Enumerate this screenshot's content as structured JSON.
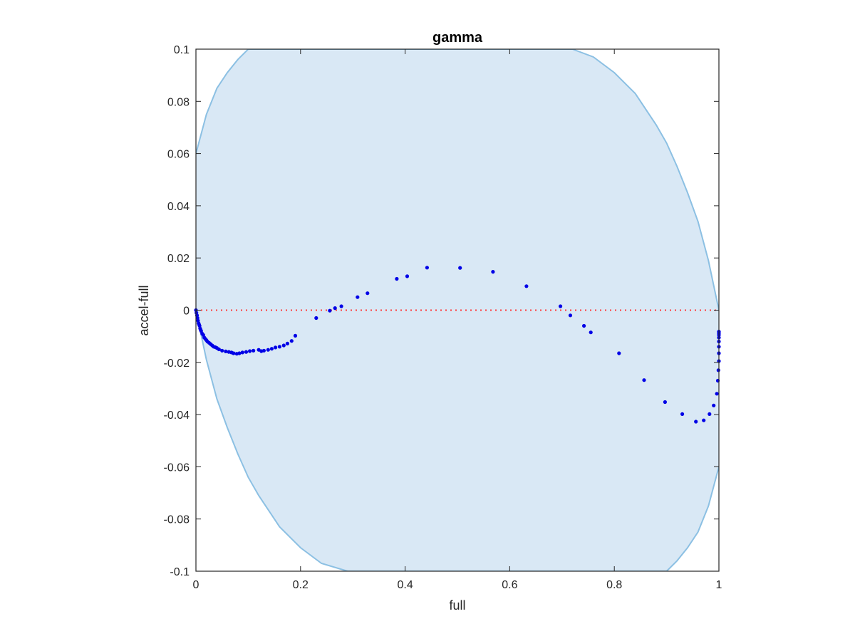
{
  "chart_data": {
    "type": "scatter",
    "title": "gamma",
    "xlabel": "full",
    "ylabel": "accel-full",
    "xlim": [
      0,
      1
    ],
    "ylim": [
      -0.1,
      0.1
    ],
    "xticks": [
      0,
      0.2,
      0.4,
      0.6,
      0.8,
      1
    ],
    "xtick_labels": [
      "0",
      "0.2",
      "0.4",
      "0.6",
      "0.8",
      "1"
    ],
    "yticks": [
      -0.1,
      -0.08,
      -0.06,
      -0.04,
      -0.02,
      0,
      0.02,
      0.04,
      0.06,
      0.08,
      0.1
    ],
    "ytick_labels": [
      "-0.1",
      "-0.08",
      "-0.06",
      "-0.04",
      "-0.02",
      "0",
      "0.02",
      "0.04",
      "0.06",
      "0.08",
      "0.1"
    ],
    "grid": false,
    "band": {
      "fill_color": "#d9e8f5",
      "edge_color": "#8cc0e3",
      "upper": [
        [
          0,
          0.06
        ],
        [
          0.02,
          0.075
        ],
        [
          0.04,
          0.085
        ],
        [
          0.06,
          0.091
        ],
        [
          0.08,
          0.096
        ],
        [
          0.1,
          0.1
        ],
        [
          0.3,
          0.1
        ],
        [
          0.5,
          0.1
        ],
        [
          0.7,
          0.1
        ],
        [
          0.72,
          0.1
        ],
        [
          0.76,
          0.097
        ],
        [
          0.8,
          0.091
        ],
        [
          0.84,
          0.083
        ],
        [
          0.88,
          0.071
        ],
        [
          0.9,
          0.064
        ],
        [
          0.92,
          0.055
        ],
        [
          0.94,
          0.045
        ],
        [
          0.96,
          0.034
        ],
        [
          0.98,
          0.019
        ],
        [
          1,
          0
        ]
      ],
      "lower": [
        [
          0,
          0
        ],
        [
          0.02,
          -0.019
        ],
        [
          0.04,
          -0.034
        ],
        [
          0.06,
          -0.045
        ],
        [
          0.08,
          -0.055
        ],
        [
          0.1,
          -0.064
        ],
        [
          0.12,
          -0.071
        ],
        [
          0.16,
          -0.083
        ],
        [
          0.2,
          -0.091
        ],
        [
          0.24,
          -0.097
        ],
        [
          0.29,
          -0.1
        ],
        [
          0.5,
          -0.1
        ],
        [
          0.7,
          -0.1
        ],
        [
          0.9,
          -0.1
        ],
        [
          0.92,
          -0.096
        ],
        [
          0.94,
          -0.091
        ],
        [
          0.96,
          -0.085
        ],
        [
          0.98,
          -0.075
        ],
        [
          1,
          -0.06
        ]
      ]
    },
    "reference_line": {
      "y": 0,
      "color": "#ff3b3b",
      "style": "dotted"
    },
    "series": [
      {
        "color": "#0000e6",
        "points": [
          [
            0,
            0
          ],
          [
            0.001,
            -0.001
          ],
          [
            0.002,
            -0.002
          ],
          [
            0.003,
            -0.003
          ],
          [
            0.004,
            -0.004
          ],
          [
            0.005,
            -0.005
          ],
          [
            0.006,
            -0.0055
          ],
          [
            0.007,
            -0.006
          ],
          [
            0.008,
            -0.007
          ],
          [
            0.009,
            -0.0075
          ],
          [
            0.01,
            -0.008
          ],
          [
            0.012,
            -0.009
          ],
          [
            0.014,
            -0.0095
          ],
          [
            0.016,
            -0.0105
          ],
          [
            0.018,
            -0.011
          ],
          [
            0.02,
            -0.0115
          ],
          [
            0.022,
            -0.012
          ],
          [
            0.025,
            -0.0125
          ],
          [
            0.028,
            -0.013
          ],
          [
            0.031,
            -0.0135
          ],
          [
            0.034,
            -0.014
          ],
          [
            0.037,
            -0.0142
          ],
          [
            0.04,
            -0.0145
          ],
          [
            0.044,
            -0.015
          ],
          [
            0.05,
            -0.0155
          ],
          [
            0.057,
            -0.0158
          ],
          [
            0.063,
            -0.016
          ],
          [
            0.068,
            -0.0162
          ],
          [
            0.072,
            -0.0165
          ],
          [
            0.078,
            -0.0167
          ],
          [
            0.083,
            -0.0165
          ],
          [
            0.089,
            -0.0162
          ],
          [
            0.096,
            -0.016
          ],
          [
            0.103,
            -0.0157
          ],
          [
            0.11,
            -0.0155
          ],
          [
            0.12,
            -0.0152
          ],
          [
            0.125,
            -0.0157
          ],
          [
            0.13,
            -0.0155
          ],
          [
            0.138,
            -0.0152
          ],
          [
            0.145,
            -0.0148
          ],
          [
            0.152,
            -0.0143
          ],
          [
            0.16,
            -0.014
          ],
          [
            0.168,
            -0.0135
          ],
          [
            0.175,
            -0.0128
          ],
          [
            0.183,
            -0.0118
          ],
          [
            0.19,
            -0.0098
          ],
          [
            0.23,
            -0.003
          ],
          [
            0.256,
            -0.0002
          ],
          [
            0.266,
            0.0008
          ],
          [
            0.278,
            0.0015
          ],
          [
            0.309,
            0.005
          ],
          [
            0.328,
            0.0065
          ],
          [
            0.384,
            0.012
          ],
          [
            0.404,
            0.013
          ],
          [
            0.442,
            0.0163
          ],
          [
            0.505,
            0.0162
          ],
          [
            0.568,
            0.0147
          ],
          [
            0.632,
            0.0092
          ],
          [
            0.697,
            0.0015
          ],
          [
            0.716,
            -0.002
          ],
          [
            0.742,
            -0.006
          ],
          [
            0.755,
            -0.0085
          ],
          [
            0.809,
            -0.0165
          ],
          [
            0.857,
            -0.0268
          ],
          [
            0.897,
            -0.0352
          ],
          [
            0.93,
            -0.0398
          ],
          [
            0.956,
            -0.0427
          ],
          [
            0.971,
            -0.0422
          ],
          [
            0.982,
            -0.0398
          ],
          [
            0.99,
            -0.0365
          ],
          [
            0.996,
            -0.032
          ],
          [
            0.998,
            -0.027
          ],
          [
            0.999,
            -0.023
          ],
          [
            1,
            -0.0195
          ],
          [
            1,
            -0.0165
          ],
          [
            1,
            -0.014
          ],
          [
            1,
            -0.012
          ],
          [
            1,
            -0.0105
          ],
          [
            1,
            -0.0095
          ],
          [
            1,
            -0.0088
          ],
          [
            1,
            -0.0082
          ]
        ]
      }
    ]
  }
}
